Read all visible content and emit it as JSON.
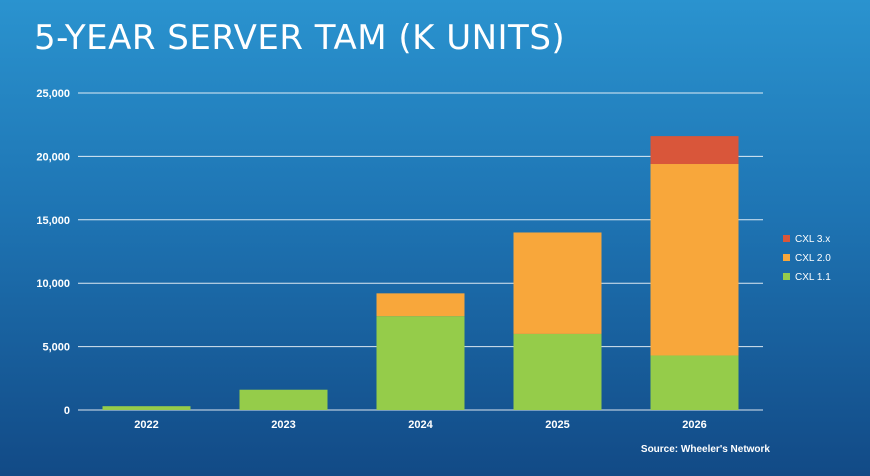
{
  "slide": {
    "title": "5-YEAR SERVER TAM (K UNITS)",
    "source": "Source: Wheeler's Network"
  },
  "colors": {
    "cxl_1_1": "#95cc4a",
    "cxl_2_0": "#f8a73b",
    "cxl_3_x": "#d9563a",
    "gridline": "#ffffff"
  },
  "chart_data": {
    "type": "bar",
    "stacked": true,
    "title": "5-YEAR SERVER TAM (K UNITS)",
    "xlabel": "",
    "ylabel": "",
    "categories": [
      "2022",
      "2023",
      "2024",
      "2025",
      "2026"
    ],
    "series": [
      {
        "name": "CXL 1.1",
        "values": [
          300,
          1600,
          7400,
          6000,
          4300
        ]
      },
      {
        "name": "CXL 2.0",
        "values": [
          0,
          0,
          1800,
          8000,
          15100
        ]
      },
      {
        "name": "CXL 3.x",
        "values": [
          0,
          0,
          0,
          0,
          2200
        ]
      }
    ],
    "ylim": [
      0,
      25000
    ],
    "yticks": [
      0,
      5000,
      10000,
      15000,
      20000,
      25000
    ],
    "ytick_labels": [
      "0",
      "5,000",
      "10,000",
      "15,000",
      "20,000",
      "25,000"
    ],
    "grid": true,
    "legend": {
      "position": "right",
      "entries": [
        "CXL 3.x",
        "CXL 2.0",
        "CXL 1.1"
      ]
    }
  }
}
